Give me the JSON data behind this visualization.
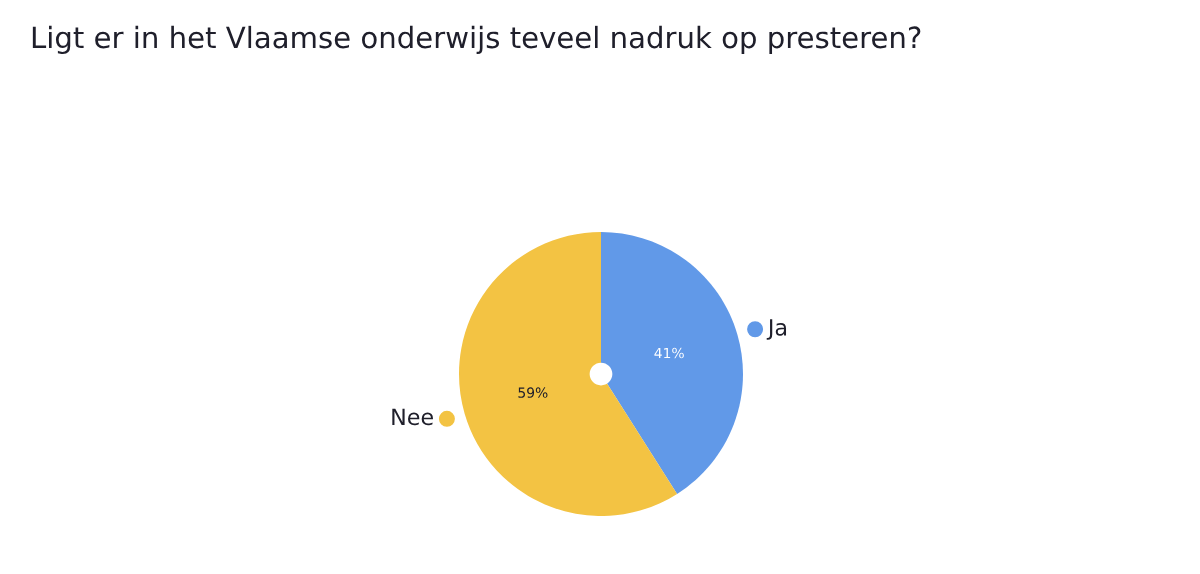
{
  "chart_data": {
    "type": "pie",
    "title": "Ligt er in het Vlaamse onderwijs teveel nadruk op presteren?",
    "categories": [
      "Ja",
      "Nee"
    ],
    "values": [
      41,
      59
    ],
    "colors": [
      "#6199e8",
      "#f3c343"
    ],
    "value_labels": [
      "41%",
      "59%"
    ]
  }
}
